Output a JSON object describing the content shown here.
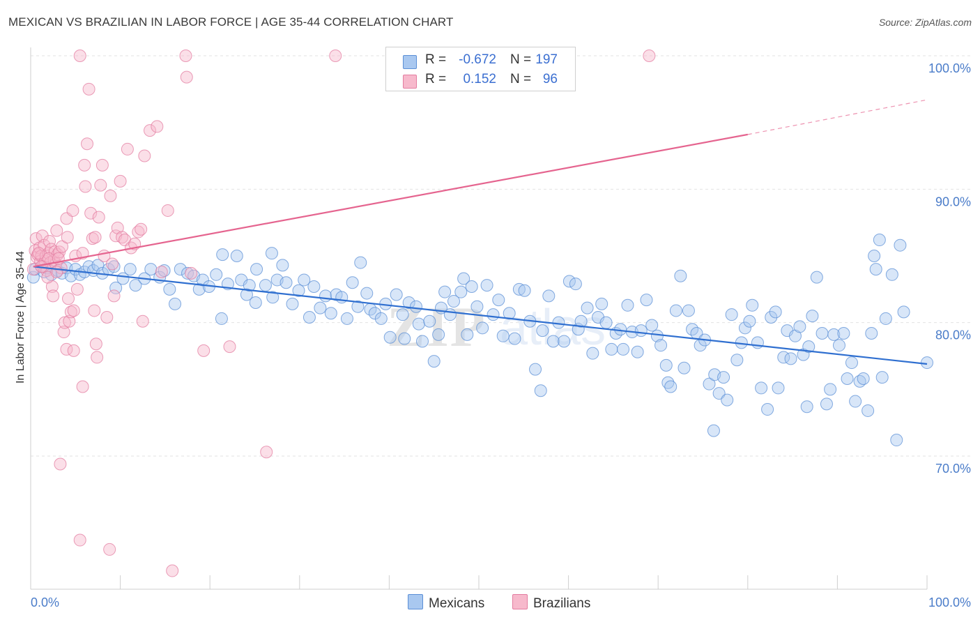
{
  "title": "MEXICAN VS BRAZILIAN IN LABOR FORCE | AGE 35-44 CORRELATION CHART",
  "source": "Source: ZipAtlas.com",
  "watermark": "ZIPatlas",
  "legend": {
    "rows": [
      {
        "r_label": "R =",
        "r_value": "-0.672",
        "n_label": "N =",
        "n_value": "197",
        "color": "#a9c8f0",
        "border": "#5b8fd6"
      },
      {
        "r_label": "R =",
        "r_value": "0.152",
        "n_label": "N =",
        "n_value": "96",
        "color": "#f7b9cc",
        "border": "#e37ca0"
      }
    ]
  },
  "bottom_legend": [
    {
      "label": "Mexicans",
      "color": "#a9c8f0",
      "border": "#5b8fd6"
    },
    {
      "label": "Brazilians",
      "color": "#f7b9cc",
      "border": "#e37ca0"
    }
  ],
  "chart_data": {
    "type": "scatter",
    "title": "MEXICAN VS BRAZILIAN IN LABOR FORCE | AGE 35-44 CORRELATION CHART",
    "xlabel": "",
    "ylabel": "In Labor Force | Age 35-44",
    "xlim": [
      0,
      100
    ],
    "ylim": [
      61,
      101
    ],
    "x_tick_labels": [
      {
        "value": 0,
        "label": "0.0%"
      },
      {
        "value": 100,
        "label": "100.0%"
      }
    ],
    "y_tick_labels": [
      {
        "value": 70,
        "label": "70.0%"
      },
      {
        "value": 80,
        "label": "80.0%"
      },
      {
        "value": 90,
        "label": "90.0%"
      },
      {
        "value": 100,
        "label": "100.0%"
      }
    ],
    "grid": true,
    "legend_position": "top-center",
    "series": [
      {
        "name": "Mexicans",
        "color": "#5b8fd6",
        "fill": "#a9c8f0",
        "trend": {
          "x0": 0.3,
          "y0": 84.2,
          "x1": 100,
          "y1": 76.9
        },
        "points": [
          [
            0.3,
            83.4
          ],
          [
            0.5,
            84.0
          ],
          [
            1.2,
            84.2
          ],
          [
            1.5,
            83.8
          ],
          [
            1.8,
            84.1
          ],
          [
            2.3,
            83.6
          ],
          [
            3.0,
            83.9
          ],
          [
            3.5,
            83.7
          ],
          [
            4.0,
            84.1
          ],
          [
            4.5,
            83.5
          ],
          [
            5.0,
            84.0
          ],
          [
            5.5,
            83.6
          ],
          [
            6.0,
            83.8
          ],
          [
            6.5,
            84.2
          ],
          [
            7.0,
            83.9
          ],
          [
            7.5,
            84.3
          ],
          [
            8.0,
            83.7
          ],
          [
            8.7,
            84.0
          ],
          [
            9.3,
            84.2
          ],
          [
            9.5,
            82.6
          ],
          [
            10.3,
            83.3
          ],
          [
            11.1,
            84.0
          ],
          [
            11.7,
            82.8
          ],
          [
            12.7,
            83.3
          ],
          [
            13.4,
            84.0
          ],
          [
            14.4,
            83.4
          ],
          [
            14.9,
            83.9
          ],
          [
            15.5,
            82.5
          ],
          [
            16.7,
            84.0
          ],
          [
            17.5,
            83.7
          ],
          [
            16.1,
            81.4
          ],
          [
            18.2,
            83.5
          ],
          [
            18.8,
            82.5
          ],
          [
            19.2,
            83.2
          ],
          [
            19.9,
            82.7
          ],
          [
            20.7,
            83.6
          ],
          [
            21.4,
            85.1
          ],
          [
            21.3,
            80.3
          ],
          [
            22.0,
            82.9
          ],
          [
            23.0,
            85.0
          ],
          [
            23.5,
            83.2
          ],
          [
            24.1,
            82.1
          ],
          [
            24.4,
            82.8
          ],
          [
            25.2,
            84.0
          ],
          [
            25.1,
            81.5
          ],
          [
            26.2,
            82.8
          ],
          [
            26.9,
            85.2
          ],
          [
            27.0,
            81.9
          ],
          [
            27.5,
            83.2
          ],
          [
            28.1,
            84.3
          ],
          [
            28.5,
            83.0
          ],
          [
            29.2,
            81.4
          ],
          [
            29.9,
            82.4
          ],
          [
            30.5,
            83.2
          ],
          [
            31.1,
            80.4
          ],
          [
            31.6,
            82.7
          ],
          [
            32.3,
            81.1
          ],
          [
            32.9,
            82.0
          ],
          [
            33.5,
            80.7
          ],
          [
            34.1,
            82.1
          ],
          [
            34.7,
            81.9
          ],
          [
            35.3,
            80.3
          ],
          [
            35.9,
            83.0
          ],
          [
            36.5,
            81.2
          ],
          [
            36.8,
            84.5
          ],
          [
            37.5,
            82.2
          ],
          [
            37.9,
            81.0
          ],
          [
            38.4,
            80.7
          ],
          [
            39.1,
            80.3
          ],
          [
            39.6,
            81.4
          ],
          [
            40.1,
            78.9
          ],
          [
            40.8,
            82.1
          ],
          [
            41.5,
            80.6
          ],
          [
            41.7,
            78.8
          ],
          [
            42.2,
            81.5
          ],
          [
            43.0,
            81.2
          ],
          [
            43.3,
            79.9
          ],
          [
            43.7,
            78.6
          ],
          [
            44.5,
            80.1
          ],
          [
            45.0,
            77.1
          ],
          [
            45.5,
            79.1
          ],
          [
            45.8,
            81.1
          ],
          [
            46.2,
            82.3
          ],
          [
            46.8,
            80.6
          ],
          [
            47.2,
            81.6
          ],
          [
            48.0,
            82.3
          ],
          [
            48.3,
            83.3
          ],
          [
            48.7,
            79.1
          ],
          [
            49.2,
            82.7
          ],
          [
            49.8,
            81.2
          ],
          [
            50.4,
            79.6
          ],
          [
            50.9,
            82.8
          ],
          [
            51.6,
            80.6
          ],
          [
            52.2,
            81.7
          ],
          [
            52.7,
            79.0
          ],
          [
            53.4,
            80.7
          ],
          [
            54.0,
            78.8
          ],
          [
            54.5,
            82.5
          ],
          [
            55.1,
            82.4
          ],
          [
            55.7,
            80.1
          ],
          [
            56.3,
            76.5
          ],
          [
            56.9,
            74.9
          ],
          [
            57.1,
            79.4
          ],
          [
            57.8,
            82.0
          ],
          [
            58.3,
            78.6
          ],
          [
            58.9,
            80.0
          ],
          [
            59.5,
            78.6
          ],
          [
            60.1,
            83.1
          ],
          [
            60.8,
            82.9
          ],
          [
            61.1,
            79.5
          ],
          [
            61.4,
            80.1
          ],
          [
            62.1,
            81.1
          ],
          [
            62.7,
            77.7
          ],
          [
            63.3,
            80.4
          ],
          [
            63.7,
            81.4
          ],
          [
            64.2,
            80.0
          ],
          [
            64.8,
            78.0
          ],
          [
            65.3,
            79.2
          ],
          [
            65.8,
            79.5
          ],
          [
            66.1,
            78.0
          ],
          [
            66.6,
            81.3
          ],
          [
            67.1,
            79.3
          ],
          [
            67.7,
            77.8
          ],
          [
            68.1,
            79.4
          ],
          [
            68.7,
            81.7
          ],
          [
            69.3,
            79.8
          ],
          [
            69.9,
            79.0
          ],
          [
            70.3,
            78.3
          ],
          [
            70.9,
            76.8
          ],
          [
            71.1,
            75.5
          ],
          [
            71.4,
            75.2
          ],
          [
            72.0,
            80.9
          ],
          [
            72.5,
            83.5
          ],
          [
            72.9,
            76.6
          ],
          [
            73.4,
            80.9
          ],
          [
            73.8,
            79.5
          ],
          [
            74.3,
            79.2
          ],
          [
            74.7,
            78.3
          ],
          [
            75.2,
            78.7
          ],
          [
            75.7,
            75.4
          ],
          [
            76.3,
            76.1
          ],
          [
            76.8,
            74.7
          ],
          [
            77.3,
            75.9
          ],
          [
            77.7,
            74.2
          ],
          [
            78.2,
            80.6
          ],
          [
            78.8,
            77.2
          ],
          [
            79.3,
            78.5
          ],
          [
            79.7,
            79.6
          ],
          [
            80.2,
            80.1
          ],
          [
            80.5,
            81.3
          ],
          [
            81.1,
            78.5
          ],
          [
            81.5,
            75.1
          ],
          [
            82.2,
            73.5
          ],
          [
            82.6,
            80.4
          ],
          [
            83.1,
            80.8
          ],
          [
            83.4,
            75.1
          ],
          [
            84.0,
            77.4
          ],
          [
            84.4,
            79.4
          ],
          [
            84.8,
            77.3
          ],
          [
            85.3,
            79.0
          ],
          [
            85.8,
            79.7
          ],
          [
            86.2,
            77.6
          ],
          [
            86.8,
            78.2
          ],
          [
            87.2,
            80.5
          ],
          [
            86.6,
            73.7
          ],
          [
            87.7,
            83.4
          ],
          [
            88.3,
            79.2
          ],
          [
            88.8,
            73.9
          ],
          [
            89.2,
            75.0
          ],
          [
            89.6,
            79.1
          ],
          [
            90.2,
            78.3
          ],
          [
            90.7,
            79.2
          ],
          [
            91.1,
            75.8
          ],
          [
            91.6,
            77.0
          ],
          [
            92.0,
            74.1
          ],
          [
            92.5,
            75.6
          ],
          [
            92.9,
            75.8
          ],
          [
            93.4,
            73.4
          ],
          [
            93.8,
            79.2
          ],
          [
            94.3,
            84.0
          ],
          [
            94.7,
            86.2
          ],
          [
            94.1,
            85.0
          ],
          [
            95.0,
            75.9
          ],
          [
            95.4,
            80.3
          ],
          [
            96.1,
            83.6
          ],
          [
            96.6,
            71.2
          ],
          [
            97.0,
            85.8
          ],
          [
            97.4,
            80.8
          ],
          [
            76.2,
            71.9
          ],
          [
            100.0,
            77.0
          ]
        ]
      },
      {
        "name": "Brazilians",
        "color": "#e37ca0",
        "fill": "#f7b9cc",
        "trend": {
          "x0": 0.3,
          "y0": 84.2,
          "x1": 80.0,
          "y1": 94.1
        },
        "trend_extension": {
          "x0": 80.0,
          "y0": 94.1,
          "x1": 100.0,
          "y1": 96.7
        },
        "points": [
          [
            0.3,
            84.0
          ],
          [
            0.5,
            85.4
          ],
          [
            0.6,
            86.3
          ],
          [
            0.7,
            84.9
          ],
          [
            0.8,
            85.1
          ],
          [
            1.0,
            85.6
          ],
          [
            1.1,
            84.6
          ],
          [
            1.2,
            85.0
          ],
          [
            1.3,
            86.5
          ],
          [
            1.4,
            84.2
          ],
          [
            1.5,
            85.8
          ],
          [
            1.6,
            84.6
          ],
          [
            1.7,
            85.0
          ],
          [
            1.8,
            83.9
          ],
          [
            2.0,
            85.2
          ],
          [
            2.1,
            86.1
          ],
          [
            2.2,
            84.5
          ],
          [
            2.3,
            85.5
          ],
          [
            2.4,
            82.7
          ],
          [
            2.5,
            82.0
          ],
          [
            2.6,
            84.7
          ],
          [
            2.7,
            85.3
          ],
          [
            2.8,
            84.4
          ],
          [
            2.9,
            86.9
          ],
          [
            3.0,
            85.1
          ],
          [
            3.2,
            85.3
          ],
          [
            3.4,
            84.1
          ],
          [
            3.5,
            85.7
          ],
          [
            3.7,
            79.3
          ],
          [
            3.8,
            80.0
          ],
          [
            4.0,
            87.8
          ],
          [
            4.1,
            86.4
          ],
          [
            4.2,
            81.8
          ],
          [
            4.3,
            80.1
          ],
          [
            4.5,
            80.8
          ],
          [
            4.7,
            88.4
          ],
          [
            4.8,
            80.9
          ],
          [
            5.0,
            85.0
          ],
          [
            5.2,
            82.5
          ],
          [
            5.5,
            63.7
          ],
          [
            5.8,
            85.2
          ],
          [
            6.0,
            91.8
          ],
          [
            6.1,
            90.2
          ],
          [
            6.3,
            93.4
          ],
          [
            6.5,
            97.5
          ],
          [
            6.7,
            88.2
          ],
          [
            6.9,
            86.3
          ],
          [
            7.1,
            80.9
          ],
          [
            7.2,
            86.4
          ],
          [
            7.4,
            77.4
          ],
          [
            7.6,
            87.9
          ],
          [
            7.8,
            90.3
          ],
          [
            8.0,
            91.8
          ],
          [
            8.2,
            85.0
          ],
          [
            8.5,
            80.4
          ],
          [
            8.9,
            89.5
          ],
          [
            9.1,
            84.4
          ],
          [
            9.3,
            82.0
          ],
          [
            9.5,
            86.5
          ],
          [
            9.7,
            87.1
          ],
          [
            10.0,
            90.6
          ],
          [
            10.2,
            86.4
          ],
          [
            10.5,
            86.2
          ],
          [
            10.8,
            93.0
          ],
          [
            11.2,
            85.6
          ],
          [
            11.6,
            85.9
          ],
          [
            12.0,
            86.8
          ],
          [
            12.3,
            87.0
          ],
          [
            12.5,
            80.1
          ],
          [
            12.7,
            92.5
          ],
          [
            13.3,
            94.4
          ],
          [
            14.1,
            94.7
          ],
          [
            14.6,
            83.8
          ],
          [
            15.3,
            88.4
          ],
          [
            15.8,
            61.4
          ],
          [
            17.3,
            100.0
          ],
          [
            17.9,
            83.7
          ],
          [
            19.3,
            77.9
          ],
          [
            22.2,
            78.2
          ],
          [
            26.3,
            70.3
          ],
          [
            34.0,
            100.0
          ],
          [
            69.0,
            100.0
          ],
          [
            3.3,
            69.4
          ],
          [
            4.0,
            78.0
          ],
          [
            4.8,
            77.9
          ],
          [
            5.8,
            75.2
          ],
          [
            7.3,
            78.4
          ],
          [
            8.8,
            63.0
          ],
          [
            2.0,
            84.8
          ],
          [
            1.9,
            83.4
          ],
          [
            2.9,
            83.8
          ],
          [
            3.1,
            84.8
          ],
          [
            5.5,
            100.0
          ],
          [
            17.4,
            98.4
          ],
          [
            1.2,
            84.2
          ],
          [
            0.9,
            85.2
          ]
        ]
      }
    ]
  }
}
